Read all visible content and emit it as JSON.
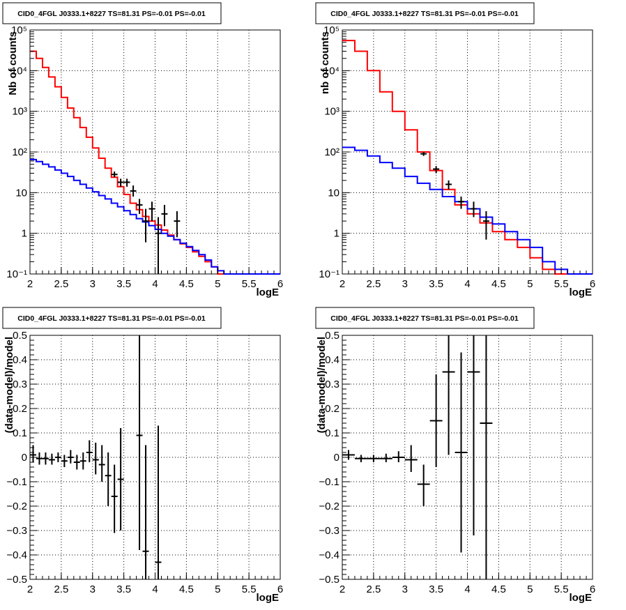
{
  "colors": {
    "model_total": "#ff0000",
    "model_source": "#0000ff",
    "data": "#000000"
  },
  "panels": [
    {
      "title": "CID0_4FGL J0333.1+8227 TS=81.31 PS=-0.01 PS=-0.01",
      "chart_data": {
        "type": "line",
        "xlabel": "logE",
        "ylabel": "Nb of counts",
        "xlim": [
          2,
          6
        ],
        "ylim": [
          0.1,
          100000
        ],
        "yscale": "log",
        "grid": true,
        "xticks": [
          2,
          2.5,
          3,
          3.5,
          4,
          4.5,
          5,
          5.5,
          6
        ],
        "xtick_labels": [
          "2",
          "2.5",
          "3",
          "3.5",
          "4",
          "4.5",
          "5",
          "5.5",
          "6"
        ],
        "ytick_labels": [
          "10⁻¹",
          "1",
          "10",
          "10²",
          "10³",
          "10⁴",
          "10⁵"
        ],
        "x_edges": [
          2.0,
          2.1,
          2.2,
          2.3,
          2.4,
          2.5,
          2.6,
          2.7,
          2.8,
          2.9,
          3.0,
          3.1,
          3.2,
          3.3,
          3.4,
          3.5,
          3.6,
          3.7,
          3.8,
          3.9,
          4.0,
          4.1,
          4.2,
          4.3,
          4.4,
          4.5,
          4.6,
          4.7,
          4.8,
          4.9,
          5.0,
          5.1,
          5.2,
          5.3,
          5.4,
          5.5,
          5.6,
          5.7,
          5.8,
          5.9,
          6.0
        ],
        "series": [
          {
            "color": "red",
            "values": [
              30000,
              20000,
              12000,
              7000,
              4000,
              2200,
              1200,
              700,
              400,
              230,
              125,
              70,
              40,
              24,
              14,
              9,
              5.5,
              3.8,
              2.6,
              2.0,
              1.6,
              1.2,
              0.9,
              0.7,
              0.55,
              0.45,
              0.35,
              0.27,
              0.2,
              0.15,
              0.1,
              0.1,
              0.1,
              0.1,
              0.1,
              0.1,
              0.1,
              0.1,
              0.1,
              0.1
            ]
          },
          {
            "color": "blue",
            "values": [
              65,
              58,
              50,
              43,
              36,
              30,
              25,
              20,
              16,
              13,
              10.5,
              8.5,
              7,
              5.5,
              4.5,
              3.6,
              2.9,
              2.3,
              1.9,
              1.55,
              1.25,
              1.0,
              0.85,
              0.7,
              0.57,
              0.47,
              0.38,
              0.3,
              0.22,
              0.15,
              0.12,
              0.1,
              0.1,
              0.1,
              0.1,
              0.1,
              0.1,
              0.1,
              0.1,
              0.1
            ]
          }
        ],
        "points": [
          {
            "x": 3.35,
            "y": 28,
            "ylo": 24,
            "yhi": 33
          },
          {
            "x": 3.45,
            "y": 18,
            "ylo": 14,
            "yhi": 22
          },
          {
            "x": 3.55,
            "y": 18,
            "ylo": 14,
            "yhi": 22
          },
          {
            "x": 3.65,
            "y": 11,
            "ylo": 8,
            "yhi": 15
          },
          {
            "x": 3.75,
            "y": 5,
            "ylo": 3,
            "yhi": 7
          },
          {
            "x": 3.85,
            "y": 2,
            "ylo": 0.6,
            "yhi": 4
          },
          {
            "x": 3.95,
            "y": 4,
            "ylo": 2,
            "yhi": 6
          },
          {
            "x": 4.05,
            "y": 1,
            "ylo": 0.1,
            "yhi": 2.5
          },
          {
            "x": 4.15,
            "y": 3,
            "ylo": 1.5,
            "yhi": 5
          },
          {
            "x": 4.35,
            "y": 2,
            "ylo": 0.8,
            "yhi": 3.5
          }
        ]
      }
    },
    {
      "title": "CID0_4FGL J0333.1+8227 TS=81.31 PS=-0.01 PS=-0.01",
      "chart_data": {
        "type": "line",
        "xlabel": "logE",
        "ylabel": "nb of counts",
        "xlim": [
          2,
          6
        ],
        "ylim": [
          0.1,
          100000
        ],
        "yscale": "log",
        "grid": true,
        "xticks": [
          2,
          2.5,
          3,
          3.5,
          4,
          4.5,
          5,
          5.5,
          6
        ],
        "xtick_labels": [
          "2",
          "2.5",
          "3",
          "3.5",
          "4",
          "4.5",
          "5",
          "5.5",
          "6"
        ],
        "ytick_labels": [
          "10⁻¹",
          "1",
          "10",
          "10²",
          "10³",
          "10⁴",
          "10⁵"
        ],
        "x_edges": [
          2.0,
          2.2,
          2.4,
          2.6,
          2.8,
          3.0,
          3.2,
          3.4,
          3.6,
          3.8,
          4.0,
          4.2,
          4.4,
          4.6,
          4.8,
          5.0,
          5.2,
          5.4,
          5.6,
          5.8,
          6.0
        ],
        "series": [
          {
            "color": "red",
            "values": [
              55000,
              30000,
              10000,
              3000,
              1000,
              350,
              100,
              35,
              12,
              5,
              3,
              1.8,
              1.1,
              0.7,
              0.45,
              0.25,
              0.13,
              0.1,
              0.1,
              0.1
            ]
          },
          {
            "color": "blue",
            "values": [
              130,
              110,
              80,
              55,
              40,
              25,
              17,
              12,
              8,
              6,
              4,
              2.5,
              1.7,
              1.1,
              0.7,
              0.45,
              0.2,
              0.13,
              0.1,
              0.1
            ]
          }
        ],
        "points": [
          {
            "x": 3.3,
            "y": 90,
            "ylo": 80,
            "yhi": 100
          },
          {
            "x": 3.5,
            "y": 38,
            "ylo": 30,
            "yhi": 45
          },
          {
            "x": 3.7,
            "y": 16,
            "ylo": 12,
            "yhi": 20
          },
          {
            "x": 3.9,
            "y": 6,
            "ylo": 4,
            "yhi": 8
          },
          {
            "x": 4.1,
            "y": 4,
            "ylo": 2.5,
            "yhi": 6
          },
          {
            "x": 4.3,
            "y": 2,
            "ylo": 0.7,
            "yhi": 3.5
          }
        ]
      }
    },
    {
      "title": "CID0_4FGL J0333.1+8227 TS=81.31 PS=-0.01 PS=-0.01",
      "chart_data": {
        "type": "scatter",
        "xlabel": "logE",
        "ylabel": "(data-model)/model",
        "xlim": [
          2,
          6
        ],
        "ylim": [
          -0.5,
          0.5
        ],
        "grid": true,
        "xticks": [
          2,
          2.5,
          3,
          3.5,
          4,
          4.5,
          5,
          5.5,
          6
        ],
        "xtick_labels": [
          "2",
          "2.5",
          "3",
          "3.5",
          "4",
          "4.5",
          "5",
          "5.5",
          "6"
        ],
        "yticks": [
          -0.5,
          -0.4,
          -0.3,
          -0.2,
          -0.1,
          0,
          0.1,
          0.2,
          0.3,
          0.4,
          0.5
        ],
        "ytick_labels": [
          "−0.5",
          "−0.4",
          "−0.3",
          "−0.2",
          "−0.1",
          "0",
          "0.1",
          "0.2",
          "0.3",
          "0.4",
          "0.5"
        ],
        "xerr": 0.05,
        "points": [
          {
            "x": 2.05,
            "y": 0.01,
            "ylo": -0.02,
            "yhi": 0.05
          },
          {
            "x": 2.15,
            "y": -0.005,
            "ylo": -0.03,
            "yhi": 0.02
          },
          {
            "x": 2.25,
            "y": -0.005,
            "ylo": -0.03,
            "yhi": 0.02
          },
          {
            "x": 2.35,
            "y": -0.01,
            "ylo": -0.03,
            "yhi": 0.015
          },
          {
            "x": 2.45,
            "y": 0.0,
            "ylo": -0.02,
            "yhi": 0.02
          },
          {
            "x": 2.55,
            "y": -0.015,
            "ylo": -0.04,
            "yhi": 0.01
          },
          {
            "x": 2.65,
            "y": 0.0,
            "ylo": -0.025,
            "yhi": 0.03
          },
          {
            "x": 2.75,
            "y": -0.02,
            "ylo": -0.05,
            "yhi": 0.01
          },
          {
            "x": 2.85,
            "y": -0.015,
            "ylo": -0.05,
            "yhi": 0.02
          },
          {
            "x": 2.95,
            "y": 0.02,
            "ylo": -0.02,
            "yhi": 0.07
          },
          {
            "x": 3.05,
            "y": -0.01,
            "ylo": -0.07,
            "yhi": 0.06
          },
          {
            "x": 3.15,
            "y": -0.03,
            "ylo": -0.1,
            "yhi": 0.05
          },
          {
            "x": 3.25,
            "y": -0.075,
            "ylo": -0.2,
            "yhi": 0.02
          },
          {
            "x": 3.35,
            "y": -0.16,
            "ylo": -0.31,
            "yhi": -0.03
          },
          {
            "x": 3.45,
            "y": -0.09,
            "ylo": -0.3,
            "yhi": 0.12
          },
          {
            "x": 3.75,
            "y": 0.09,
            "ylo": -0.38,
            "yhi": 0.5
          },
          {
            "x": 3.85,
            "y": -0.385,
            "ylo": -0.5,
            "yhi": 0.05
          },
          {
            "x": 4.05,
            "y": -0.43,
            "ylo": -0.5,
            "yhi": 0.13
          }
        ]
      }
    },
    {
      "title": "CID0_4FGL J0333.1+8227 TS=81.31 PS=-0.01 PS=-0.01",
      "chart_data": {
        "type": "scatter",
        "xlabel": "logE",
        "ylabel": "(data-model)/model",
        "xlim": [
          2,
          6
        ],
        "ylim": [
          -0.5,
          0.5
        ],
        "grid": true,
        "xticks": [
          2,
          2.5,
          3,
          3.5,
          4,
          4.5,
          5,
          5.5,
          6
        ],
        "xtick_labels": [
          "2",
          "2.5",
          "3",
          "3.5",
          "4",
          "4.5",
          "5",
          "5.5",
          "6"
        ],
        "yticks": [
          -0.5,
          -0.4,
          -0.3,
          -0.2,
          -0.1,
          0,
          0.1,
          0.2,
          0.3,
          0.4,
          0.5
        ],
        "ytick_labels": [
          "−0.5",
          "−0.4",
          "−0.3",
          "−0.2",
          "−0.1",
          "0",
          "0.1",
          "0.2",
          "0.3",
          "0.4",
          "0.5"
        ],
        "xerr": 0.1,
        "points": [
          {
            "x": 2.1,
            "y": 0.01,
            "ylo": -0.01,
            "yhi": 0.03
          },
          {
            "x": 2.3,
            "y": -0.005,
            "ylo": -0.02,
            "yhi": 0.01
          },
          {
            "x": 2.5,
            "y": -0.005,
            "ylo": -0.02,
            "yhi": 0.01
          },
          {
            "x": 2.7,
            "y": -0.005,
            "ylo": -0.02,
            "yhi": 0.015
          },
          {
            "x": 2.9,
            "y": 0.0,
            "ylo": -0.02,
            "yhi": 0.025
          },
          {
            "x": 3.1,
            "y": -0.01,
            "ylo": -0.06,
            "yhi": 0.05
          },
          {
            "x": 3.3,
            "y": -0.11,
            "ylo": -0.2,
            "yhi": -0.03
          },
          {
            "x": 3.5,
            "y": 0.15,
            "ylo": -0.04,
            "yhi": 0.34
          },
          {
            "x": 3.7,
            "y": 0.35,
            "ylo": 0.01,
            "yhi": 0.5
          },
          {
            "x": 3.9,
            "y": 0.02,
            "ylo": -0.39,
            "yhi": 0.43
          },
          {
            "x": 4.1,
            "y": 0.35,
            "ylo": -0.32,
            "yhi": 0.5
          },
          {
            "x": 4.3,
            "y": 0.14,
            "ylo": -0.5,
            "yhi": 0.5
          }
        ]
      }
    }
  ]
}
